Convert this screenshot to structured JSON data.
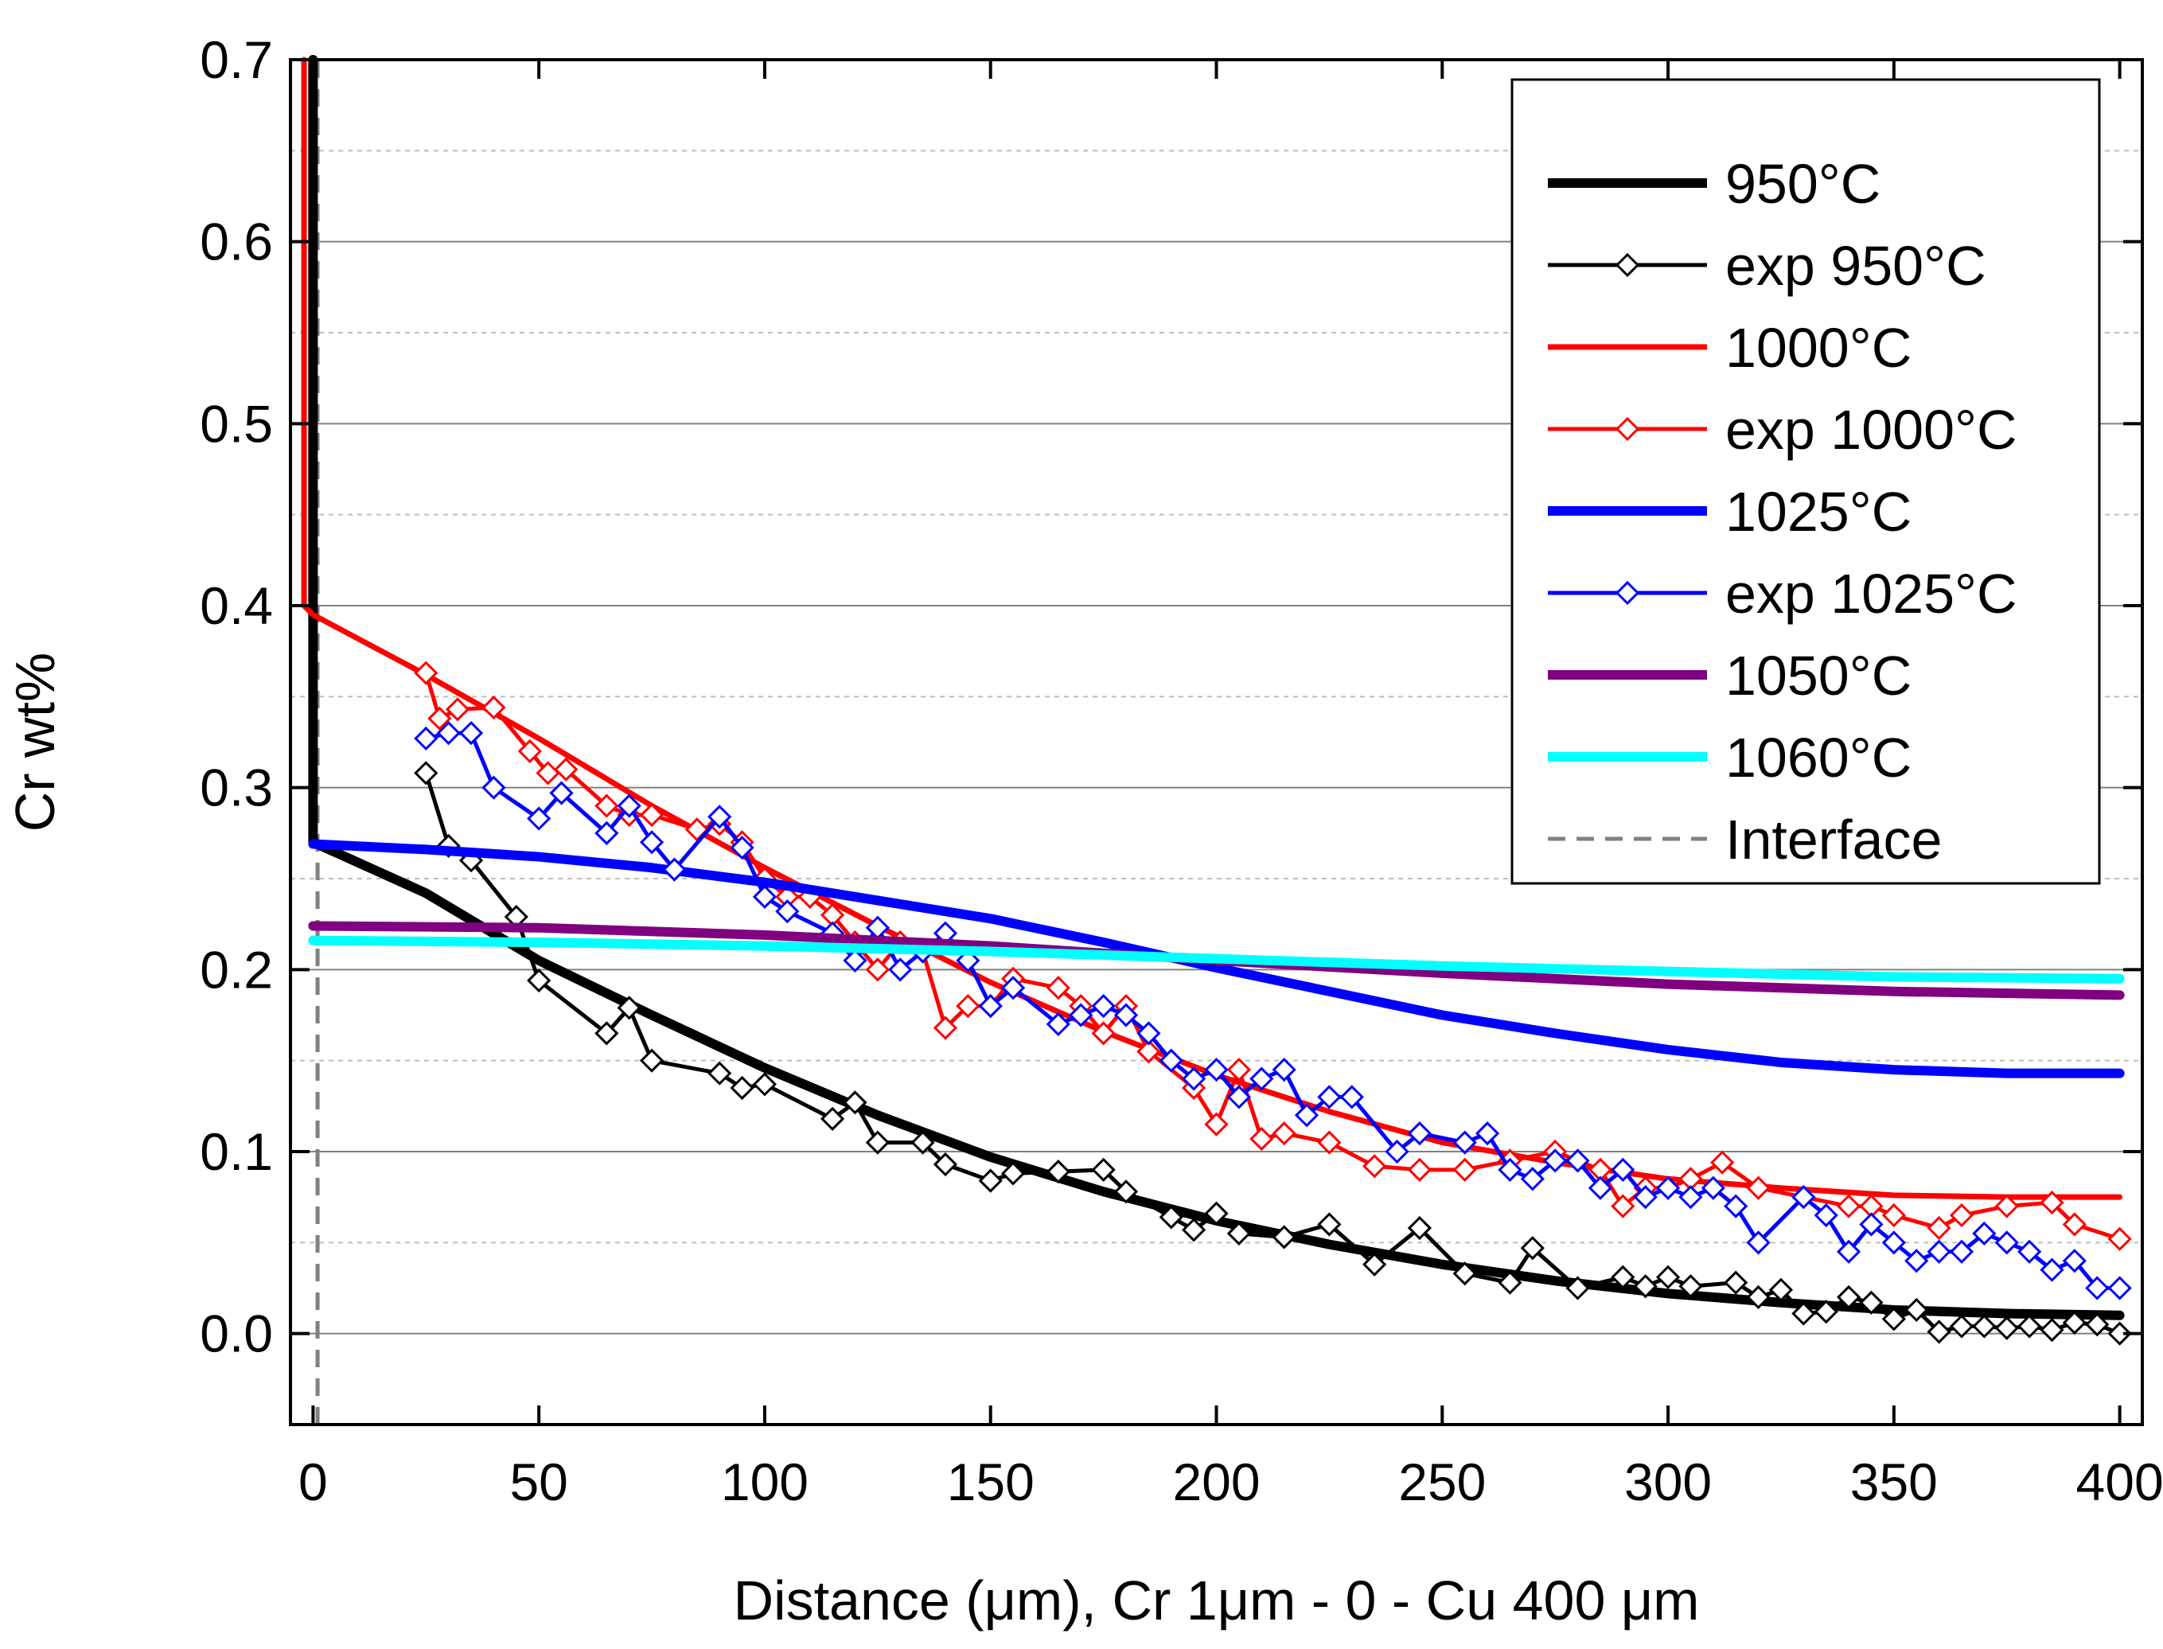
{
  "chart_data": {
    "type": "line",
    "title": "",
    "xlabel": "Distance (μm), Cr 1μm - 0 - Cu 400 μm",
    "ylabel": "Cr wt%",
    "xlim": [
      -5,
      405
    ],
    "ylim": [
      -0.05,
      0.7
    ],
    "xticks": [
      0,
      50,
      100,
      150,
      200,
      250,
      300,
      350,
      400
    ],
    "yticks": [
      0.0,
      0.1,
      0.2,
      0.3,
      0.4,
      0.5,
      0.6,
      0.7
    ],
    "xtick_labels": [
      "0",
      "50",
      "100",
      "150",
      "200",
      "250",
      "300",
      "350",
      "400"
    ],
    "ytick_labels": [
      "0.0",
      "0.1",
      "0.2",
      "0.3",
      "0.4",
      "0.5",
      "0.6",
      "0.7"
    ],
    "grid": "horizontal major solid, minor dotted",
    "legend_position": "top-right",
    "series": [
      {
        "name": "950°C",
        "color": "#000000",
        "style": "thick",
        "marker": "none",
        "x": [
          0,
          0,
          0,
          25,
          50,
          75,
          100,
          125,
          150,
          175,
          200,
          225,
          250,
          275,
          300,
          325,
          350,
          375,
          400
        ],
        "y": [
          0.7,
          0.4,
          0.27,
          0.242,
          0.205,
          0.175,
          0.146,
          0.12,
          0.097,
          0.078,
          0.062,
          0.049,
          0.038,
          0.029,
          0.022,
          0.017,
          0.013,
          0.011,
          0.01
        ]
      },
      {
        "name": "exp 950°C",
        "color": "#000000",
        "style": "thin",
        "marker": "diamond",
        "x": [
          25,
          30,
          35,
          45,
          50,
          65,
          70,
          75,
          90,
          95,
          100,
          115,
          120,
          125,
          135,
          140,
          150,
          155,
          165,
          175,
          180,
          190,
          195,
          200,
          205,
          215,
          225,
          235,
          245,
          255,
          265,
          270,
          280,
          290,
          295,
          300,
          305,
          315,
          320,
          325,
          330,
          335,
          340,
          345,
          350,
          355,
          360,
          365,
          370,
          375,
          380,
          385,
          390,
          395,
          400
        ],
        "y": [
          0.308,
          0.268,
          0.26,
          0.229,
          0.194,
          0.165,
          0.179,
          0.15,
          0.143,
          0.135,
          0.137,
          0.118,
          0.127,
          0.105,
          0.105,
          0.093,
          0.084,
          0.088,
          0.089,
          0.09,
          0.078,
          0.064,
          0.057,
          0.066,
          0.055,
          0.053,
          0.06,
          0.038,
          0.058,
          0.033,
          0.028,
          0.047,
          0.025,
          0.031,
          0.026,
          0.031,
          0.026,
          0.028,
          0.02,
          0.024,
          0.011,
          0.012,
          0.02,
          0.017,
          0.008,
          0.013,
          0.001,
          0.004,
          0.004,
          0.003,
          0.004,
          0.002,
          0.006,
          0.005,
          0.0
        ]
      },
      {
        "name": "1000°C",
        "color": "#ff0000",
        "style": "medium",
        "marker": "none",
        "x": [
          -2,
          -2,
          0,
          25,
          50,
          75,
          100,
          125,
          150,
          175,
          200,
          225,
          250,
          275,
          300,
          325,
          350,
          375,
          400
        ],
        "y": [
          0.7,
          0.4,
          0.395,
          0.362,
          0.327,
          0.29,
          0.256,
          0.224,
          0.193,
          0.166,
          0.142,
          0.122,
          0.105,
          0.094,
          0.085,
          0.08,
          0.076,
          0.075,
          0.075
        ]
      },
      {
        "name": "exp 1000°C",
        "color": "#ff0000",
        "style": "thin",
        "marker": "diamond",
        "x": [
          25,
          28,
          32,
          40,
          48,
          52,
          56,
          65,
          70,
          75,
          85,
          90,
          95,
          100,
          105,
          110,
          115,
          120,
          125,
          130,
          135,
          140,
          145,
          150,
          155,
          165,
          170,
          175,
          180,
          185,
          195,
          200,
          205,
          210,
          215,
          225,
          235,
          245,
          255,
          265,
          275,
          285,
          290,
          295,
          300,
          305,
          312,
          320,
          330,
          340,
          345,
          350,
          360,
          365,
          375,
          385,
          390,
          400
        ],
        "y": [
          0.363,
          0.338,
          0.343,
          0.344,
          0.32,
          0.308,
          0.31,
          0.29,
          0.285,
          0.285,
          0.277,
          0.28,
          0.27,
          0.25,
          0.24,
          0.24,
          0.23,
          0.215,
          0.2,
          0.215,
          0.21,
          0.168,
          0.18,
          0.18,
          0.195,
          0.19,
          0.18,
          0.165,
          0.18,
          0.155,
          0.135,
          0.115,
          0.145,
          0.107,
          0.11,
          0.105,
          0.092,
          0.09,
          0.09,
          0.095,
          0.1,
          0.09,
          0.07,
          0.08,
          0.08,
          0.085,
          0.094,
          0.08,
          0.075,
          0.07,
          0.07,
          0.065,
          0.058,
          0.065,
          0.07,
          0.072,
          0.06,
          0.052
        ]
      },
      {
        "name": "1025°C",
        "color": "#0000ff",
        "style": "thick",
        "marker": "none",
        "x": [
          0,
          25,
          50,
          75,
          100,
          125,
          150,
          175,
          200,
          225,
          250,
          275,
          300,
          325,
          350,
          375,
          400
        ],
        "y": [
          0.269,
          0.266,
          0.262,
          0.256,
          0.248,
          0.238,
          0.228,
          0.215,
          0.201,
          0.188,
          0.175,
          0.165,
          0.156,
          0.149,
          0.145,
          0.143,
          0.143
        ]
      },
      {
        "name": "exp 1025°C",
        "color": "#0000ff",
        "style": "thin",
        "marker": "diamond",
        "x": [
          25,
          30,
          35,
          40,
          50,
          55,
          65,
          70,
          75,
          80,
          90,
          95,
          100,
          105,
          115,
          120,
          125,
          130,
          135,
          140,
          145,
          150,
          155,
          165,
          170,
          175,
          180,
          185,
          190,
          195,
          200,
          205,
          210,
          215,
          220,
          225,
          230,
          240,
          245,
          255,
          260,
          265,
          270,
          275,
          280,
          285,
          290,
          295,
          300,
          305,
          310,
          315,
          320,
          330,
          335,
          340,
          345,
          350,
          355,
          360,
          365,
          370,
          375,
          380,
          385,
          390,
          395,
          400
        ],
        "y": [
          0.327,
          0.33,
          0.33,
          0.3,
          0.283,
          0.297,
          0.275,
          0.29,
          0.27,
          0.255,
          0.284,
          0.267,
          0.24,
          0.232,
          0.22,
          0.205,
          0.223,
          0.2,
          0.21,
          0.22,
          0.205,
          0.18,
          0.19,
          0.17,
          0.175,
          0.18,
          0.175,
          0.165,
          0.15,
          0.14,
          0.145,
          0.13,
          0.14,
          0.145,
          0.12,
          0.13,
          0.13,
          0.1,
          0.11,
          0.105,
          0.11,
          0.09,
          0.085,
          0.095,
          0.095,
          0.08,
          0.09,
          0.075,
          0.08,
          0.075,
          0.08,
          0.07,
          0.05,
          0.075,
          0.065,
          0.045,
          0.06,
          0.05,
          0.04,
          0.045,
          0.045,
          0.055,
          0.05,
          0.045,
          0.035,
          0.04,
          0.025,
          0.025
        ]
      },
      {
        "name": "1050°C",
        "color": "#800080",
        "style": "thick",
        "marker": "none",
        "x": [
          0,
          50,
          100,
          150,
          200,
          250,
          300,
          350,
          400
        ],
        "y": [
          0.224,
          0.223,
          0.219,
          0.213,
          0.205,
          0.198,
          0.192,
          0.188,
          0.186
        ]
      },
      {
        "name": "1060°C",
        "color": "#00ffff",
        "style": "thick",
        "marker": "none",
        "x": [
          0,
          50,
          100,
          150,
          200,
          250,
          300,
          350,
          400
        ],
        "y": [
          0.216,
          0.215,
          0.213,
          0.21,
          0.206,
          0.202,
          0.199,
          0.196,
          0.195
        ]
      },
      {
        "name": "Interface",
        "color": "#808080",
        "style": "dashed",
        "marker": "none",
        "x": [
          1,
          1
        ],
        "y": [
          -0.05,
          0.7
        ]
      }
    ]
  }
}
